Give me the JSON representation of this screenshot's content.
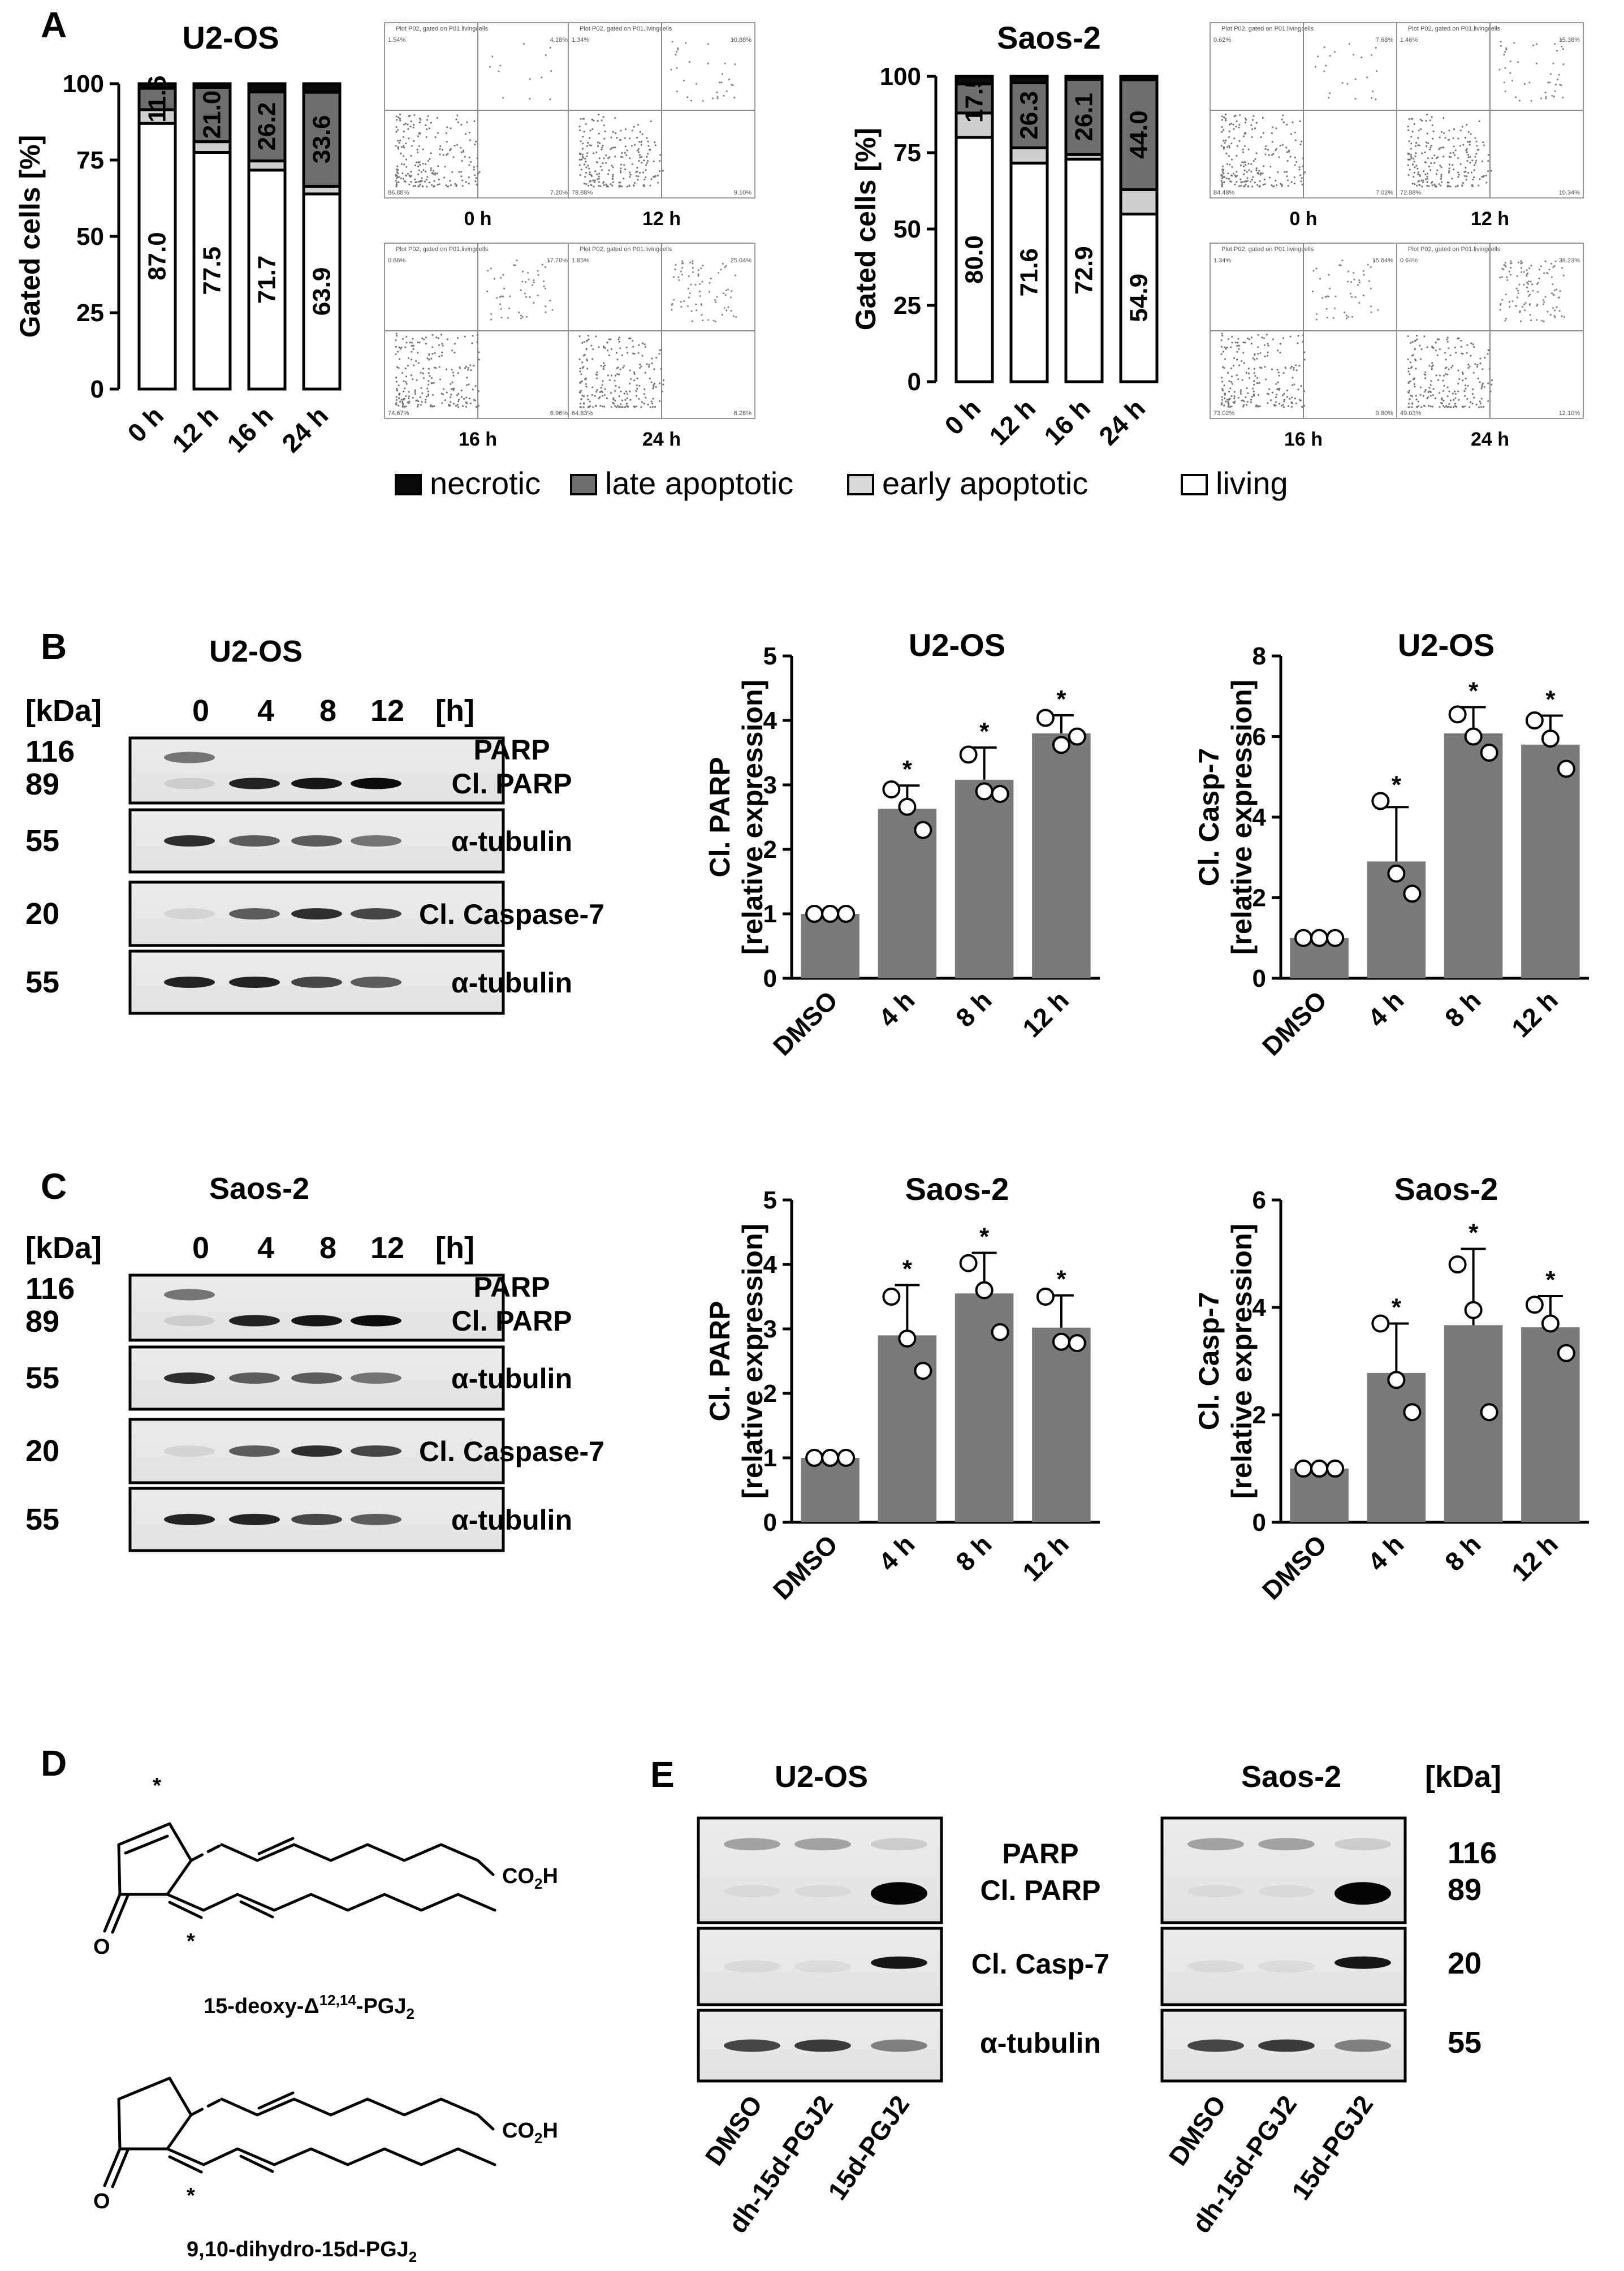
{
  "panels": {
    "A": "A",
    "B": "B",
    "C": "C",
    "D": "D",
    "E": "E"
  },
  "chart_data": [
    {
      "id": "A_U2OS",
      "type": "bar",
      "stacked": true,
      "title": "U2-OS",
      "ylabel": "Gated cells [%]",
      "ylim": [
        0,
        100
      ],
      "yticks": [
        "0",
        "25",
        "50",
        "75",
        "100"
      ],
      "categories": [
        "0 h",
        "12 h",
        "16 h",
        "24 h"
      ],
      "series": [
        {
          "name": "living",
          "color": "#ffffff",
          "values": [
            87.0,
            77.5,
            71.7,
            63.9
          ],
          "labels": [
            "87.0",
            "77.5",
            "71.7",
            "63.9"
          ]
        },
        {
          "name": "early apoptotic",
          "color": "#cfcfcf",
          "values": [
            4.5,
            3.5,
            3.0,
            2.5
          ],
          "labels": [
            "",
            "",
            "",
            ""
          ]
        },
        {
          "name": "late apoptotic",
          "color": "#6e6e6e",
          "values": [
            7.0,
            17.8,
            22.6,
            30.8
          ],
          "labels": [
            "11.6",
            "21.0",
            "26.2",
            "33.6"
          ]
        },
        {
          "name": "necrotic",
          "color": "#0a0a0a",
          "values": [
            1.5,
            1.2,
            2.7,
            2.8
          ],
          "labels": [
            "",
            "",
            "",
            ""
          ]
        }
      ]
    },
    {
      "id": "A_Saos2",
      "type": "bar",
      "stacked": true,
      "title": "Saos-2",
      "ylabel": "Gated cells [%]",
      "ylim": [
        0,
        100
      ],
      "yticks": [
        "0",
        "25",
        "50",
        "75",
        "100"
      ],
      "categories": [
        "0 h",
        "12 h",
        "16 h",
        "24 h"
      ],
      "series": [
        {
          "name": "living",
          "color": "#ffffff",
          "values": [
            80.0,
            71.6,
            72.9,
            54.9
          ],
          "labels": [
            "80.0",
            "71.6",
            "72.9",
            "54.9"
          ]
        },
        {
          "name": "early apoptotic",
          "color": "#cfcfcf",
          "values": [
            8.0,
            5.0,
            1.5,
            8.0
          ],
          "labels": [
            "",
            "",
            "",
            ""
          ]
        },
        {
          "name": "late apoptotic",
          "color": "#6e6e6e",
          "values": [
            9.5,
            21.3,
            24.6,
            36.0
          ],
          "labels": [
            "17.5",
            "26.3",
            "26.1",
            "44.0"
          ]
        },
        {
          "name": "necrotic",
          "color": "#0a0a0a",
          "values": [
            2.5,
            2.1,
            1.0,
            1.1
          ],
          "labels": [
            "",
            "",
            "",
            ""
          ]
        }
      ]
    },
    {
      "id": "B_PARP",
      "type": "bar",
      "title": "U2-OS",
      "ylabel": "Cl. PARP\n[relative expression]",
      "ylim": [
        0,
        5
      ],
      "yticks": [
        "0",
        "1",
        "2",
        "3",
        "4",
        "5"
      ],
      "categories": [
        "DMSO",
        "4 h",
        "8 h",
        "12 h"
      ],
      "values": [
        1.0,
        2.63,
        3.08,
        3.8
      ],
      "errors": [
        0,
        0.36,
        0.5,
        0.28
      ],
      "points": [
        [
          1.0,
          1.0,
          1.0
        ],
        [
          2.93,
          2.66,
          2.3
        ],
        [
          3.47,
          2.9,
          2.86
        ],
        [
          4.04,
          3.62,
          3.75
        ]
      ],
      "significance": [
        "",
        "*",
        "*",
        "*"
      ]
    },
    {
      "id": "B_Casp7",
      "type": "bar",
      "title": "U2-OS",
      "ylabel": "Cl. Casp-7\n[relative expression]",
      "ylim": [
        0,
        8
      ],
      "yticks": [
        "0",
        "2",
        "4",
        "6",
        "8"
      ],
      "categories": [
        "DMSO",
        "4 h",
        "8 h",
        "12 h"
      ],
      "values": [
        1.0,
        2.9,
        6.08,
        5.8
      ],
      "errors": [
        0,
        1.35,
        0.65,
        0.72
      ],
      "points": [
        [
          1.0,
          1.0,
          1.0
        ],
        [
          4.4,
          2.6,
          2.1
        ],
        [
          6.55,
          6.0,
          5.6
        ],
        [
          6.4,
          5.95,
          5.2
        ]
      ],
      "significance": [
        "",
        "*",
        "*",
        "*"
      ]
    },
    {
      "id": "C_PARP",
      "type": "bar",
      "title": "Saos-2",
      "ylabel": "Cl. PARP\n[relative expression]",
      "ylim": [
        0,
        5
      ],
      "yticks": [
        "0",
        "1",
        "2",
        "3",
        "4",
        "5"
      ],
      "categories": [
        "DMSO",
        "4 h",
        "8 h",
        "12 h"
      ],
      "values": [
        1.0,
        2.9,
        3.55,
        3.02
      ],
      "errors": [
        0,
        0.78,
        0.63,
        0.5
      ],
      "points": [
        [
          1.0,
          1.0,
          1.0
        ],
        [
          3.5,
          2.85,
          2.35
        ],
        [
          4.02,
          3.6,
          2.95
        ],
        [
          3.5,
          2.8,
          2.78
        ]
      ],
      "significance": [
        "",
        "*",
        "*",
        "*"
      ]
    },
    {
      "id": "C_Casp7",
      "type": "bar",
      "title": "Saos-2",
      "ylabel": "Cl. Casp-7\n[relative expression]",
      "ylim": [
        0,
        6
      ],
      "yticks": [
        "0",
        "2",
        "4",
        "6"
      ],
      "categories": [
        "DMSO",
        "4 h",
        "8 h",
        "12 h"
      ],
      "values": [
        1.0,
        2.78,
        3.67,
        3.63
      ],
      "errors": [
        0,
        0.92,
        1.42,
        0.58
      ],
      "points": [
        [
          1.0,
          1.0,
          1.0
        ],
        [
          3.7,
          2.65,
          2.05
        ],
        [
          4.8,
          3.95,
          2.05
        ],
        [
          4.05,
          3.7,
          3.15
        ]
      ],
      "significance": [
        "",
        "*",
        "*",
        "*"
      ]
    }
  ],
  "legend": [
    "necrotic",
    "late apoptotic",
    "early apoptotic",
    "living"
  ],
  "flow": {
    "header": "Plot P02, gated on P01.livingcells",
    "U2OS": [
      {
        "time": "0 h",
        "q": [
          "1.54%",
          "4.18%",
          "86.88%",
          "7.20%"
        ]
      },
      {
        "time": "12 h",
        "q": [
          "1.34%",
          "10.88%",
          "78.88%",
          "9.10%"
        ]
      },
      {
        "time": "16 h",
        "q": [
          "0.66%",
          "17.70%",
          "74.67%",
          "6.96%"
        ]
      },
      {
        "time": "24 h",
        "q": [
          "1.85%",
          "25.04%",
          "64.83%",
          "8.28%"
        ]
      }
    ],
    "Saos2": [
      {
        "time": "0 h",
        "q": [
          "0.62%",
          "7.68%",
          "84.48%",
          "7.02%"
        ]
      },
      {
        "time": "12 h",
        "q": [
          "1.46%",
          "15.38%",
          "72.88%",
          "10.34%"
        ]
      },
      {
        "time": "16 h",
        "q": [
          "1.34%",
          "15.84%",
          "73.02%",
          "9.80%"
        ]
      },
      {
        "time": "24 h",
        "q": [
          "0.64%",
          "38.23%",
          "49.03%",
          "12.10%"
        ]
      }
    ]
  },
  "blotB": {
    "cell": "U2-OS",
    "kda_label": "[kDa]",
    "h_label": "[h]",
    "lanes": [
      "0",
      "4",
      "8",
      "12"
    ],
    "kda": [
      "116",
      "89",
      "55",
      "20",
      "55"
    ],
    "proteins": [
      "PARP",
      "Cl. PARP",
      "α-tubulin",
      "Cl. Caspase-7",
      "α-tubulin"
    ]
  },
  "blotC": {
    "cell": "Saos-2",
    "kda_label": "[kDa]",
    "h_label": "[h]",
    "lanes": [
      "0",
      "4",
      "8",
      "12"
    ],
    "kda": [
      "116",
      "89",
      "55",
      "20",
      "55"
    ],
    "proteins": [
      "PARP",
      "Cl. PARP",
      "α-tubulin",
      "Cl. Caspase-7",
      "α-tubulin"
    ]
  },
  "chemD": {
    "star": "*",
    "co2h": "CO2H",
    "o": "O",
    "name1": "15-deoxy-Δ12,14-PGJ2",
    "name2": "9,10-dihydro-15d-PGJ2"
  },
  "blotE": {
    "cell1": "U2-OS",
    "cell2": "Saos-2",
    "kda_label": "[kDa]",
    "proteins": [
      "PARP",
      "Cl. PARP",
      "Cl. Casp-7",
      "α-tubulin"
    ],
    "kda": [
      "116",
      "89",
      "20",
      "55"
    ],
    "lanes": [
      "DMSO",
      "dh-15d-PGJ2",
      "15d-PGJ2"
    ]
  }
}
